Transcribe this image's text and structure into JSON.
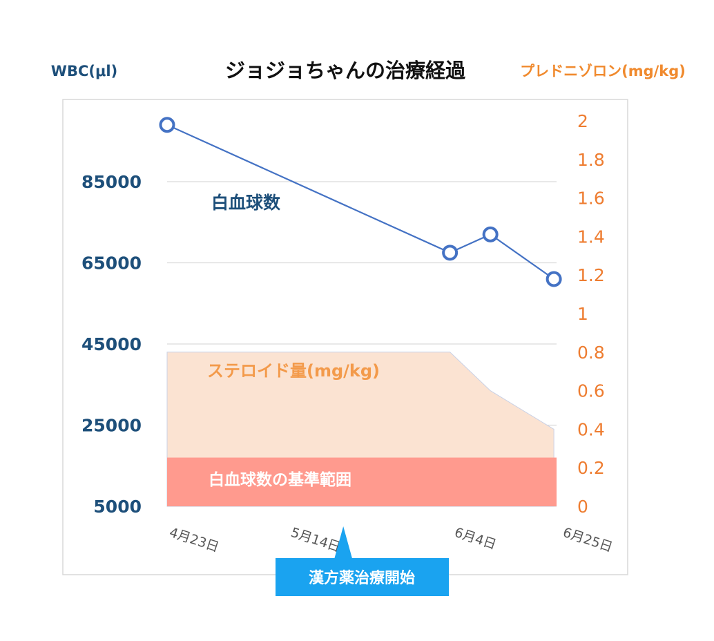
{
  "chart_data": {
    "type": "line",
    "title": "ジョジョちゃんの治療経過",
    "y_left_title": "WBC(μl)",
    "y_right_title": "プレドニゾロン(mg/kg)",
    "categories": [
      "4月23日",
      "5月14日",
      "6月4日",
      "6月25日"
    ],
    "y_left_ticks": [
      5000,
      25000,
      45000,
      65000,
      85000
    ],
    "y_left_range": [
      5000,
      100000
    ],
    "y_right_ticks": [
      0,
      0.2,
      0.4,
      0.6,
      0.8,
      1,
      1.2,
      1.4,
      1.6,
      1.8,
      2
    ],
    "y_right_range": [
      0,
      2.1
    ],
    "wbc_series": {
      "label": "白血球数",
      "color": "#4472c4",
      "x_days": [
        0,
        49,
        56,
        67
      ],
      "values": [
        99000,
        67500,
        72000,
        61000
      ]
    },
    "steroid_series": {
      "label": "ステロイド量(mg/kg)",
      "color": "#fbe3d2",
      "x_days": [
        0,
        49,
        56,
        67
      ],
      "values": [
        0.8,
        0.8,
        0.6,
        0.4
      ]
    },
    "reference_band": {
      "label": "白血球数の基準範囲",
      "color": "#ff9a8e",
      "min": 5000,
      "max": 17000
    },
    "annotation": {
      "label": "漢方薬治療開始",
      "color": "#1aa3f0",
      "x_day": 31
    },
    "grid": true,
    "colors": {
      "left_axis": "#1d4f7a",
      "right_axis": "#ee7d31",
      "grid": "#d9d9d9",
      "frame": "#d9d9d9"
    }
  }
}
